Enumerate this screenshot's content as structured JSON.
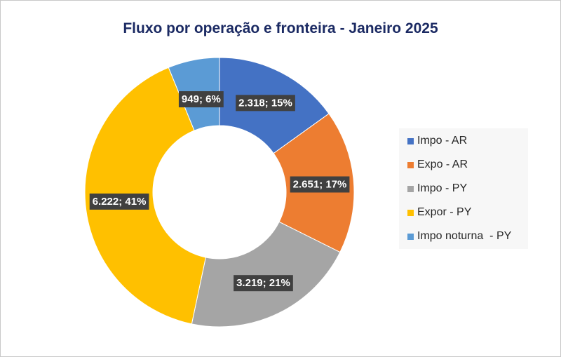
{
  "chart_data": {
    "type": "pie",
    "subtype": "donut",
    "title": "Fluxo por operação e fronteira - Janeiro 2025",
    "categories": [
      "Impo - AR",
      "Expo - AR",
      "Impo - PY",
      "Expor - PY",
      "Impo noturna  - PY"
    ],
    "values": [
      2318,
      2651,
      3219,
      6222,
      949
    ],
    "data_labels": [
      "2.318; 15%",
      "2.651; 17%",
      "3.219; 21%",
      "6.222; 41%",
      "949; 6%"
    ],
    "colors": [
      "#4472c4",
      "#ed7d31",
      "#a5a5a5",
      "#ffc000",
      "#5b9bd5"
    ],
    "legend_position": "right"
  }
}
